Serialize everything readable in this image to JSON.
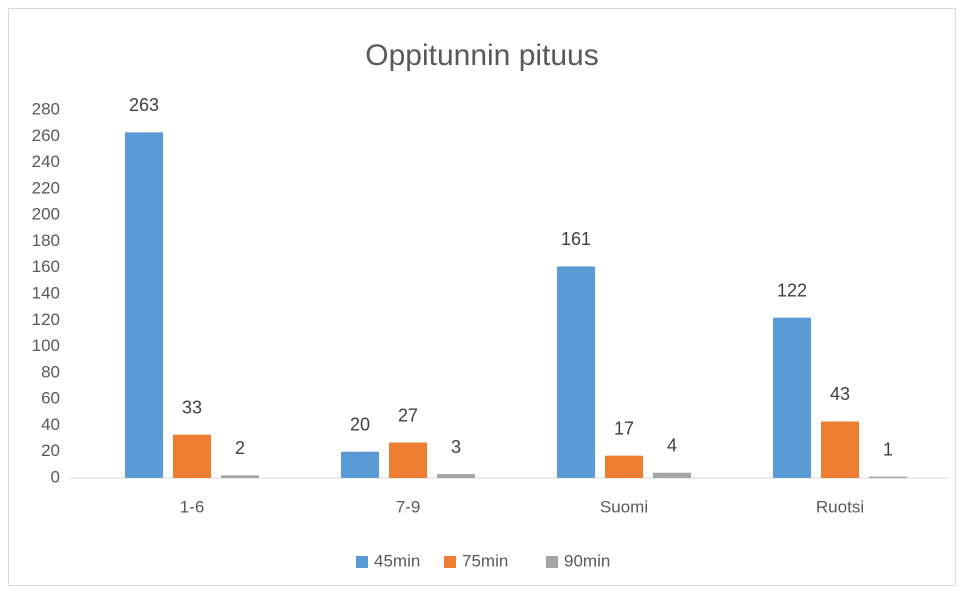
{
  "chart_data": {
    "type": "bar",
    "title": "Oppitunnin pituus",
    "categories": [
      "1-6",
      "7-9",
      "Suomi",
      "Ruotsi"
    ],
    "series": [
      {
        "name": "45min",
        "color": "#5b9bd5",
        "values": [
          263,
          20,
          161,
          122
        ]
      },
      {
        "name": "75min",
        "color": "#ed7d31",
        "values": [
          33,
          27,
          17,
          43
        ]
      },
      {
        "name": "90min",
        "color": "#a5a5a5",
        "values": [
          2,
          3,
          4,
          1
        ]
      }
    ],
    "ylim": [
      0,
      280
    ],
    "yticks": [
      0,
      20,
      40,
      60,
      80,
      100,
      120,
      140,
      160,
      180,
      200,
      220,
      240,
      260,
      280
    ],
    "grid": false,
    "legend": "bottom"
  }
}
